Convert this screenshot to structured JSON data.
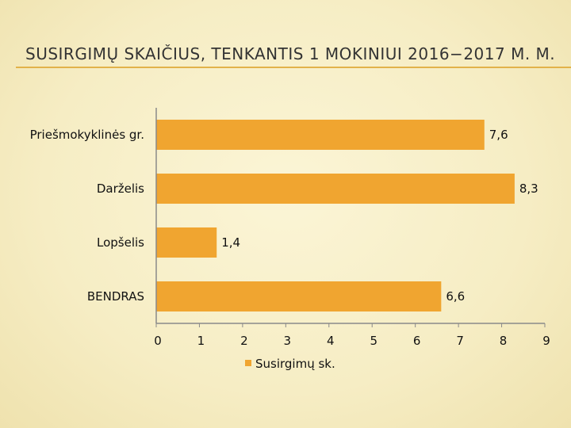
{
  "title": "SUSIRGIMŲ SKAIČIUS, TENKANTIS 1 MOKINIUI 2016−2017 M. M.",
  "colors": {
    "bar": "#f0a530",
    "axis": "#8a8a8a",
    "rule": "#e2b24a"
  },
  "chart_data": {
    "type": "bar",
    "orientation": "horizontal",
    "categories": [
      "Priešmokyklinės gr.",
      "Darželis",
      "Lopšelis",
      "BENDRAS"
    ],
    "series": [
      {
        "name": "Susirgimų sk.",
        "values": [
          7.6,
          8.3,
          1.4,
          6.6
        ]
      }
    ],
    "data_labels": [
      "7,6",
      "8,3",
      "1,4",
      "6,6"
    ],
    "xlim": [
      0,
      9
    ],
    "x_ticks": [
      "0",
      "1",
      "2",
      "3",
      "4",
      "5",
      "6",
      "7",
      "8",
      "9"
    ],
    "grid": false,
    "legend_position": "bottom"
  }
}
